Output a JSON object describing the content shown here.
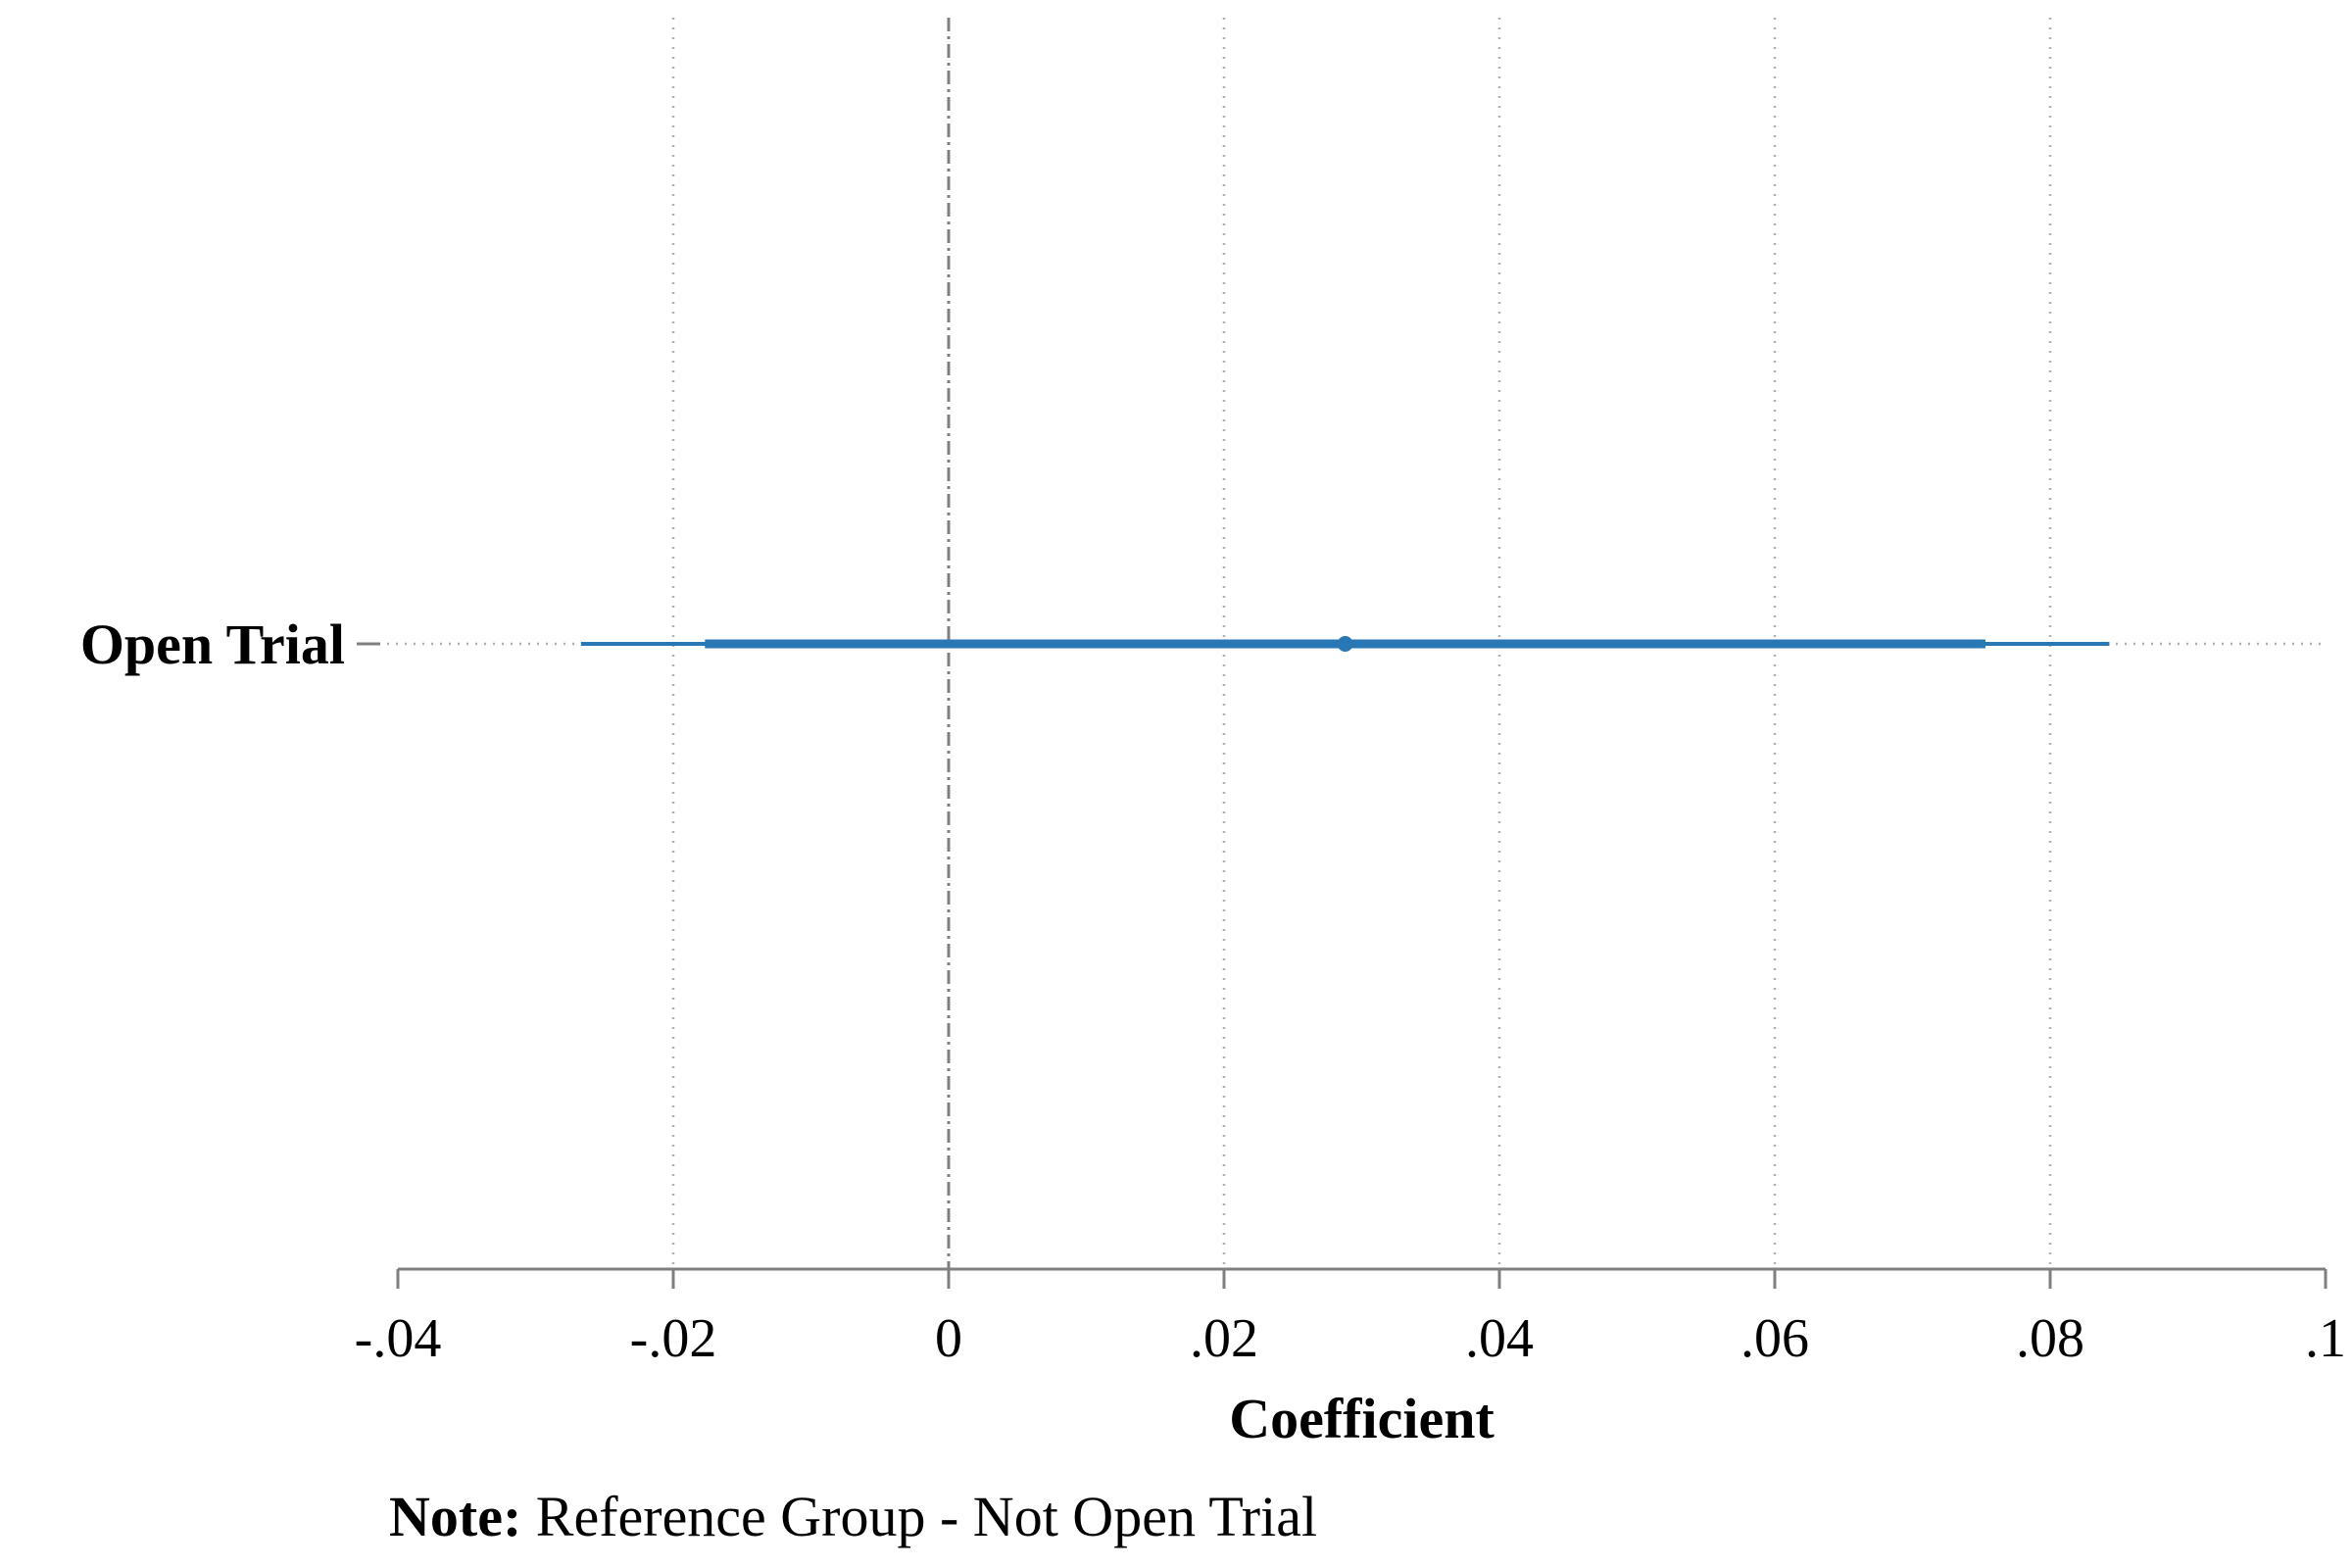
{
  "chart_data": {
    "type": "coefficient-plot",
    "title": "",
    "xlabel": "Coefficient",
    "ylabel": "",
    "xlim": [
      -0.04,
      0.1
    ],
    "x_ticks": [
      -0.04,
      -0.02,
      0,
      0.02,
      0.04,
      0.06,
      0.08,
      0.1
    ],
    "x_tick_labels": [
      "-.04",
      "-.02",
      "0",
      ".02",
      ".04",
      ".06",
      ".08",
      ".1"
    ],
    "grid": "vertical dotted",
    "reference_line": 0,
    "series": [
      {
        "category": "Open Trial",
        "estimate": 0.0288,
        "ci_inner": [
          -0.0177,
          0.0753
        ],
        "ci_outer": [
          -0.0267,
          0.0843
        ]
      }
    ],
    "note_label": "Note:",
    "note_text": " Reference Group - Not Open Trial",
    "colors": {
      "estimate": "#2878b5",
      "grid": "#b0b0b0",
      "axis": "#7f7f7f",
      "reference": "#7f7f7f"
    }
  }
}
